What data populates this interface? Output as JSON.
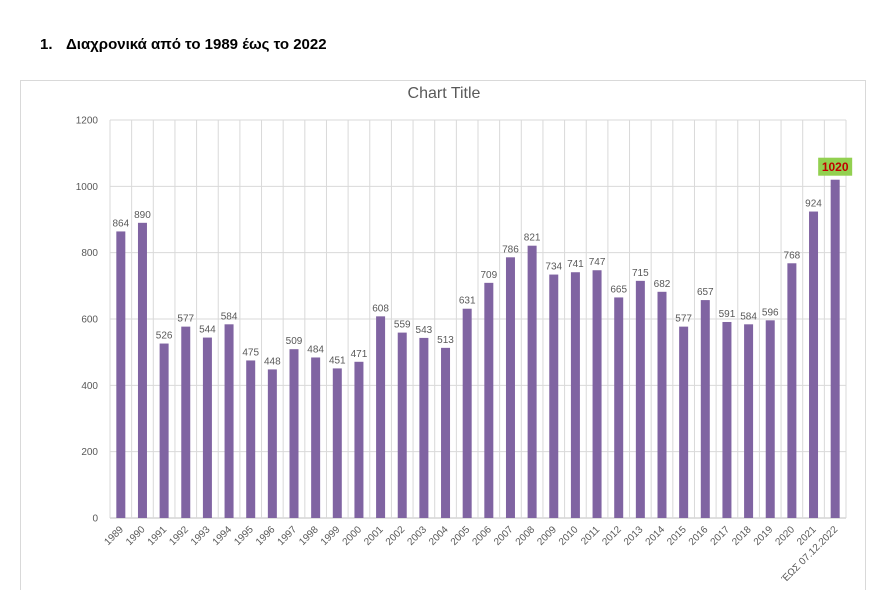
{
  "heading": {
    "number": "1.",
    "text": "Διαχρονικά από το 1989 έως το 2022"
  },
  "chart_data": {
    "type": "bar",
    "title": "Chart Title",
    "xlabel": "",
    "ylabel": "",
    "ylim": [
      0,
      1200
    ],
    "yticks": [
      "0",
      "200",
      "400",
      "600",
      "800",
      "1000",
      "1200"
    ],
    "grid": true,
    "categories": [
      "1989",
      "1990",
      "1991",
      "1992",
      "1993",
      "1994",
      "1995",
      "1996",
      "1997",
      "1998",
      "1999",
      "2000",
      "2001",
      "2002",
      "2003",
      "2004",
      "2005",
      "2006",
      "2007",
      "2008",
      "2009",
      "2010",
      "2011",
      "2012",
      "2013",
      "2014",
      "2015",
      "2016",
      "2017",
      "2018",
      "2019",
      "2020",
      "2021",
      "ΈΩΣ 07.12.2022"
    ],
    "values": [
      864,
      890,
      526,
      577,
      544,
      584,
      475,
      448,
      509,
      484,
      451,
      471,
      608,
      559,
      543,
      513,
      631,
      709,
      786,
      821,
      734,
      741,
      747,
      665,
      715,
      682,
      577,
      657,
      591,
      584,
      596,
      768,
      924,
      1020
    ],
    "highlight": {
      "index": 33,
      "label": "1020",
      "label_bg": "#92d050",
      "label_color": "#c00000"
    },
    "colors": {
      "bar": "#8064a2",
      "grid": "#d9d9d9",
      "text": "#595959"
    }
  }
}
